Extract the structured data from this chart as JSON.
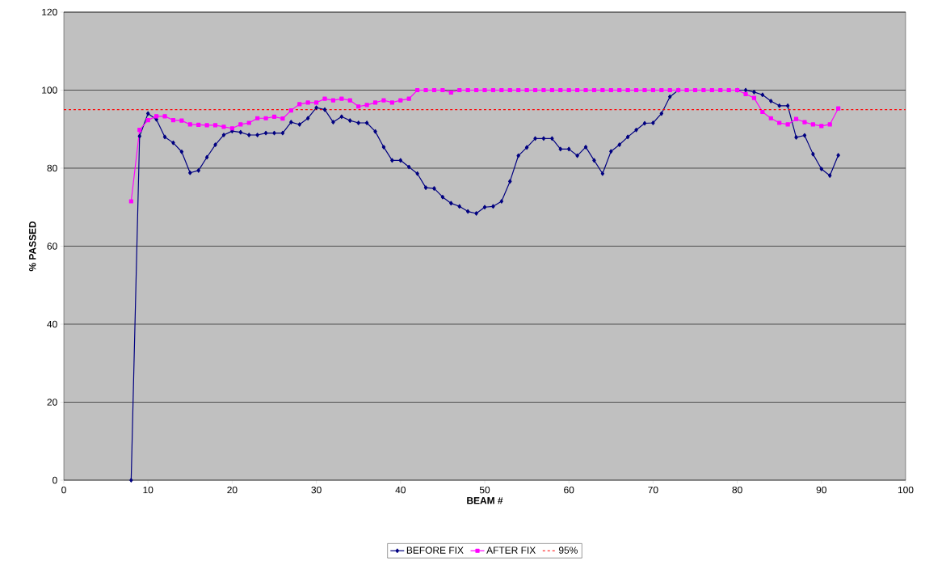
{
  "chart_data": {
    "type": "line",
    "xlabel": "BEAM #",
    "ylabel": "% PASSED",
    "xlim": [
      0,
      100
    ],
    "xticks": [
      0,
      10,
      20,
      30,
      40,
      50,
      60,
      70,
      80,
      90,
      100
    ],
    "ylim": [
      0,
      120
    ],
    "yticks": [
      0,
      20,
      40,
      60,
      80,
      100,
      120
    ],
    "grid": "y",
    "legend": "bottom",
    "x": [
      8,
      9,
      10,
      11,
      12,
      13,
      14,
      15,
      16,
      17,
      18,
      19,
      20,
      21,
      22,
      23,
      24,
      25,
      26,
      27,
      28,
      29,
      30,
      31,
      32,
      33,
      34,
      35,
      36,
      37,
      38,
      39,
      40,
      41,
      42,
      43,
      44,
      45,
      46,
      47,
      48,
      49,
      50,
      51,
      52,
      53,
      54,
      55,
      56,
      57,
      58,
      59,
      60,
      61,
      62,
      63,
      64,
      65,
      66,
      67,
      68,
      69,
      70,
      71,
      72,
      73,
      74,
      75,
      76,
      77,
      78,
      79,
      80,
      81,
      82,
      83,
      84,
      85,
      86,
      87,
      88,
      89,
      90,
      91,
      92
    ],
    "series": [
      {
        "name": "BEFORE FIX",
        "color": "#000080",
        "marker": "diamond",
        "values": [
          0,
          88.2,
          94,
          92.5,
          88,
          86.5,
          84.2,
          78.8,
          79.4,
          82.8,
          86,
          88.5,
          89.5,
          89.2,
          88.5,
          88.5,
          89,
          89,
          89,
          91.8,
          91.2,
          92.8,
          95.5,
          95,
          91.8,
          93.2,
          92.2,
          91.6,
          91.6,
          89.4,
          85.4,
          82,
          82,
          80.3,
          78.6,
          75,
          74.8,
          72.6,
          71,
          70.2,
          68.9,
          68.4,
          70,
          70.2,
          71.5,
          76.6,
          83.2,
          85.3,
          87.6,
          87.6,
          87.6,
          84.9,
          84.9,
          83.2,
          85.4,
          82,
          78.6,
          84.3,
          86,
          88,
          89.8,
          91.5,
          91.6,
          94,
          98.3,
          100,
          null,
          null,
          null,
          null,
          null,
          null,
          100,
          100,
          99.5,
          98.8,
          97.2,
          96,
          96,
          87.9,
          88.4,
          83.6,
          79.8,
          78.1,
          83.3
        ]
      },
      {
        "name": "AFTER FIX",
        "color": "#ff00ff",
        "marker": "square",
        "values": [
          71.5,
          89.8,
          92.3,
          93.3,
          93.3,
          92.3,
          92.2,
          91.2,
          91.1,
          91,
          91,
          90.6,
          90.2,
          91.2,
          91.6,
          92.8,
          92.8,
          93.2,
          92.7,
          94.8,
          96.4,
          96.8,
          96.8,
          97.8,
          97.4,
          97.8,
          97.4,
          95.8,
          96.2,
          96.8,
          97.4,
          96.8,
          97.4,
          97.8,
          100,
          100,
          100,
          100,
          99.4,
          100,
          100,
          100,
          100,
          100,
          100,
          100,
          100,
          100,
          100,
          100,
          100,
          100,
          100,
          100,
          100,
          100,
          100,
          100,
          100,
          100,
          100,
          100,
          100,
          100,
          100,
          100,
          100,
          100,
          100,
          100,
          100,
          100,
          100,
          99,
          98,
          94.4,
          92.8,
          91.6,
          91.2,
          92.6,
          91.8,
          91.2,
          90.8,
          91.2,
          95.3
        ]
      }
    ],
    "ref_lines": [
      {
        "axis": "y",
        "value": 95,
        "label": "95%",
        "color": "#ff0000",
        "line_style": "dashed"
      }
    ]
  }
}
